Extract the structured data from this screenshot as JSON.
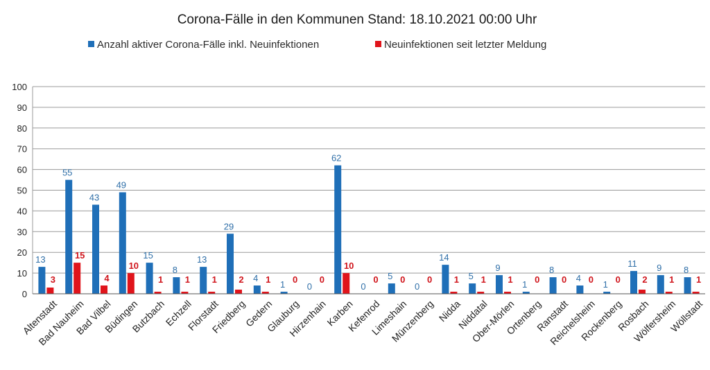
{
  "chart_data": {
    "type": "bar",
    "title": "Corona-Fälle in den Kommunen Stand: 18.10.2021 00:00 Uhr",
    "categories": [
      "Altenstadt",
      "Bad Nauheim",
      "Bad Vilbel",
      "Büdingen",
      "Butzbach",
      "Echzell",
      "Florstadt",
      "Friedberg",
      "Gedern",
      "Glauburg",
      "Hirzenhain",
      "Karben",
      "Kefenrod",
      "Limeshain",
      "Münzenberg",
      "Nidda",
      "Niddatal",
      "Ober-Mörlen",
      "Ortenberg",
      "Ranstadt",
      "Reichelsheim",
      "Rockenberg",
      "Rosbach",
      "Wölfersheim",
      "Wöllstadt"
    ],
    "series": [
      {
        "name": "Anzahl aktiver Corona-Fälle inkl. Neuinfektionen",
        "color": "#1f6fb8",
        "values": [
          13,
          55,
          43,
          49,
          15,
          8,
          13,
          29,
          4,
          1,
          0,
          62,
          0,
          5,
          0,
          14,
          5,
          9,
          1,
          8,
          4,
          1,
          11,
          9,
          8
        ]
      },
      {
        "name": "Neuinfektionen seit letzter Meldung",
        "color": "#e0141b",
        "values": [
          3,
          15,
          4,
          10,
          1,
          1,
          1,
          2,
          1,
          0,
          0,
          10,
          0,
          0,
          0,
          1,
          1,
          1,
          0,
          0,
          0,
          0,
          2,
          1,
          1
        ]
      }
    ],
    "ylim": [
      0,
      100
    ],
    "yticks": [
      0,
      10,
      20,
      30,
      40,
      50,
      60,
      70,
      80,
      90,
      100
    ],
    "grid": true,
    "legend": "top-center",
    "data_labels": true
  }
}
